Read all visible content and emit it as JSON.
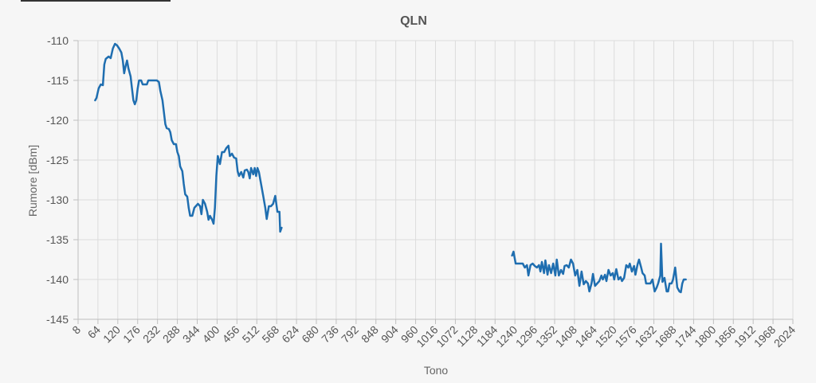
{
  "chart_data": {
    "type": "line",
    "title": "QLN",
    "xlabel": "Tono",
    "ylabel": "Rumore [dBm]",
    "xlim": [
      8,
      2024
    ],
    "ylim": [
      -145,
      -110
    ],
    "x_ticks": [
      8,
      64,
      120,
      176,
      232,
      288,
      344,
      400,
      456,
      512,
      568,
      624,
      680,
      736,
      792,
      848,
      904,
      960,
      1016,
      1072,
      1128,
      1184,
      1240,
      1296,
      1352,
      1408,
      1464,
      1520,
      1576,
      1632,
      1688,
      1744,
      1800,
      1856,
      1912,
      1968,
      2024
    ],
    "y_ticks": [
      -110,
      -115,
      -120,
      -125,
      -130,
      -135,
      -140,
      -145
    ],
    "grid": true,
    "colors": {
      "series": "#1f6eb0",
      "grid": "#dcdcdc",
      "background": "#f6f6f6"
    },
    "series": [
      {
        "segments": [
          [
            [
              56,
              -117.5
            ],
            [
              60,
              -117.2
            ],
            [
              66,
              -116
            ],
            [
              72,
              -115.5
            ],
            [
              78,
              -115.6
            ],
            [
              82,
              -113
            ],
            [
              86,
              -112.3
            ],
            [
              94,
              -112
            ],
            [
              100,
              -112.2
            ],
            [
              106,
              -111
            ],
            [
              112,
              -110.4
            ],
            [
              118,
              -110.6
            ],
            [
              124,
              -111
            ],
            [
              130,
              -111.5
            ],
            [
              134,
              -112.5
            ],
            [
              138,
              -114.1
            ],
            [
              142,
              -113.2
            ],
            [
              146,
              -112.5
            ],
            [
              150,
              -113.5
            ],
            [
              156,
              -114.5
            ],
            [
              160,
              -116
            ],
            [
              164,
              -117.5
            ],
            [
              168,
              -118
            ],
            [
              172,
              -117.5
            ],
            [
              176,
              -116
            ],
            [
              180,
              -115
            ],
            [
              186,
              -115
            ],
            [
              190,
              -115.5
            ],
            [
              196,
              -115.5
            ],
            [
              202,
              -115.5
            ],
            [
              206,
              -115
            ],
            [
              214,
              -115
            ],
            [
              222,
              -115
            ],
            [
              230,
              -115
            ],
            [
              236,
              -115.2
            ],
            [
              240,
              -116.3
            ],
            [
              246,
              -117.5
            ],
            [
              250,
              -119
            ],
            [
              254,
              -120.5
            ],
            [
              258,
              -121
            ],
            [
              264,
              -121.1
            ],
            [
              268,
              -121.5
            ],
            [
              272,
              -122.5
            ],
            [
              278,
              -123
            ],
            [
              284,
              -123
            ],
            [
              288,
              -124
            ],
            [
              292,
              -124.5
            ],
            [
              296,
              -125.8
            ],
            [
              302,
              -126.4
            ],
            [
              306,
              -128
            ],
            [
              310,
              -129.3
            ],
            [
              316,
              -129.6
            ],
            [
              320,
              -131
            ],
            [
              324,
              -132
            ],
            [
              330,
              -132
            ],
            [
              336,
              -131
            ],
            [
              340,
              -130.8
            ],
            [
              346,
              -130.5
            ],
            [
              352,
              -130.8
            ],
            [
              356,
              -131.8
            ],
            [
              360,
              -130
            ],
            [
              366,
              -130.5
            ],
            [
              372,
              -131.5
            ],
            [
              376,
              -132.5
            ],
            [
              380,
              -132
            ],
            [
              386,
              -132.5
            ],
            [
              390,
              -133
            ],
            [
              394,
              -131
            ],
            [
              398,
              -127
            ],
            [
              402,
              -124.5
            ],
            [
              408,
              -125.5
            ],
            [
              414,
              -124
            ],
            [
              420,
              -124
            ],
            [
              426,
              -123.5
            ],
            [
              432,
              -123.2
            ],
            [
              436,
              -124.5
            ],
            [
              442,
              -124.2
            ],
            [
              448,
              -124.7
            ],
            [
              454,
              -124.8
            ],
            [
              458,
              -126.4
            ],
            [
              462,
              -127
            ],
            [
              468,
              -126.5
            ],
            [
              474,
              -127.2
            ],
            [
              478,
              -126.3
            ],
            [
              484,
              -126.2
            ],
            [
              488,
              -126.5
            ],
            [
              492,
              -127.3
            ],
            [
              496,
              -126
            ],
            [
              502,
              -126.8
            ],
            [
              506,
              -126
            ],
            [
              510,
              -127
            ],
            [
              514,
              -126
            ],
            [
              518,
              -126.5
            ],
            [
              524,
              -128
            ],
            [
              530,
              -129.5
            ],
            [
              536,
              -131
            ],
            [
              540,
              -132.4
            ],
            [
              546,
              -130.8
            ],
            [
              552,
              -130.8
            ],
            [
              558,
              -130.5
            ],
            [
              564,
              -129.5
            ],
            [
              570,
              -131.5
            ],
            [
              576,
              -131.5
            ],
            [
              578,
              -134
            ],
            [
              582,
              -133.5
            ]
          ],
          [
            [
              1232,
              -137
            ],
            [
              1236,
              -136.5
            ],
            [
              1242,
              -138
            ],
            [
              1250,
              -138
            ],
            [
              1256,
              -138
            ],
            [
              1262,
              -138
            ],
            [
              1268,
              -138.5
            ],
            [
              1274,
              -138.2
            ],
            [
              1278,
              -139.5
            ],
            [
              1284,
              -138.2
            ],
            [
              1290,
              -138
            ],
            [
              1296,
              -138.3
            ],
            [
              1302,
              -138.5
            ],
            [
              1308,
              -138.2
            ],
            [
              1312,
              -139
            ],
            [
              1316,
              -137.8
            ],
            [
              1322,
              -139.2
            ],
            [
              1326,
              -137.6
            ],
            [
              1332,
              -139.4
            ],
            [
              1336,
              -138.2
            ],
            [
              1342,
              -139.2
            ],
            [
              1348,
              -138
            ],
            [
              1354,
              -139.5
            ],
            [
              1358,
              -137.5
            ],
            [
              1364,
              -139.5
            ],
            [
              1370,
              -138.8
            ],
            [
              1376,
              -139.3
            ],
            [
              1380,
              -138.3
            ],
            [
              1386,
              -138.2
            ],
            [
              1392,
              -138.5
            ],
            [
              1398,
              -137.5
            ],
            [
              1404,
              -138
            ],
            [
              1410,
              -139.5
            ],
            [
              1416,
              -138.8
            ],
            [
              1422,
              -140.8
            ],
            [
              1428,
              -139
            ],
            [
              1434,
              -140.6
            ],
            [
              1440,
              -140.2
            ],
            [
              1446,
              -140.5
            ],
            [
              1450,
              -141.5
            ],
            [
              1456,
              -140.5
            ],
            [
              1460,
              -139.3
            ],
            [
              1466,
              -140.8
            ],
            [
              1472,
              -140.5
            ],
            [
              1478,
              -140.2
            ],
            [
              1484,
              -139.5
            ],
            [
              1488,
              -140
            ],
            [
              1494,
              -139.4
            ],
            [
              1498,
              -140.2
            ],
            [
              1504,
              -138.8
            ],
            [
              1510,
              -139.5
            ],
            [
              1516,
              -139.2
            ],
            [
              1520,
              -140
            ],
            [
              1526,
              -138.7
            ],
            [
              1532,
              -140
            ],
            [
              1538,
              -139.7
            ],
            [
              1542,
              -140.2
            ],
            [
              1548,
              -139.8
            ],
            [
              1554,
              -138.2
            ],
            [
              1560,
              -138.5
            ],
            [
              1564,
              -138
            ],
            [
              1570,
              -139
            ],
            [
              1576,
              -138.3
            ],
            [
              1580,
              -139.4
            ],
            [
              1586,
              -138.1
            ],
            [
              1590,
              -137.5
            ],
            [
              1596,
              -138.5
            ],
            [
              1600,
              -139.2
            ],
            [
              1606,
              -139.5
            ],
            [
              1610,
              -140.5
            ],
            [
              1616,
              -140.5
            ],
            [
              1622,
              -140.5
            ],
            [
              1628,
              -140
            ],
            [
              1634,
              -141.5
            ],
            [
              1640,
              -141
            ],
            [
              1644,
              -140.5
            ],
            [
              1650,
              -139.5
            ],
            [
              1652,
              -135.5
            ],
            [
              1656,
              -140.3
            ],
            [
              1662,
              -139.8
            ],
            [
              1668,
              -141.5
            ],
            [
              1672,
              -141.5
            ],
            [
              1676,
              -140.5
            ],
            [
              1682,
              -140.5
            ],
            [
              1686,
              -140
            ],
            [
              1692,
              -138.5
            ],
            [
              1698,
              -141
            ],
            [
              1704,
              -141.5
            ],
            [
              1708,
              -141.6
            ],
            [
              1712,
              -140.5
            ],
            [
              1716,
              -140
            ],
            [
              1722,
              -140
            ]
          ]
        ]
      }
    ]
  }
}
